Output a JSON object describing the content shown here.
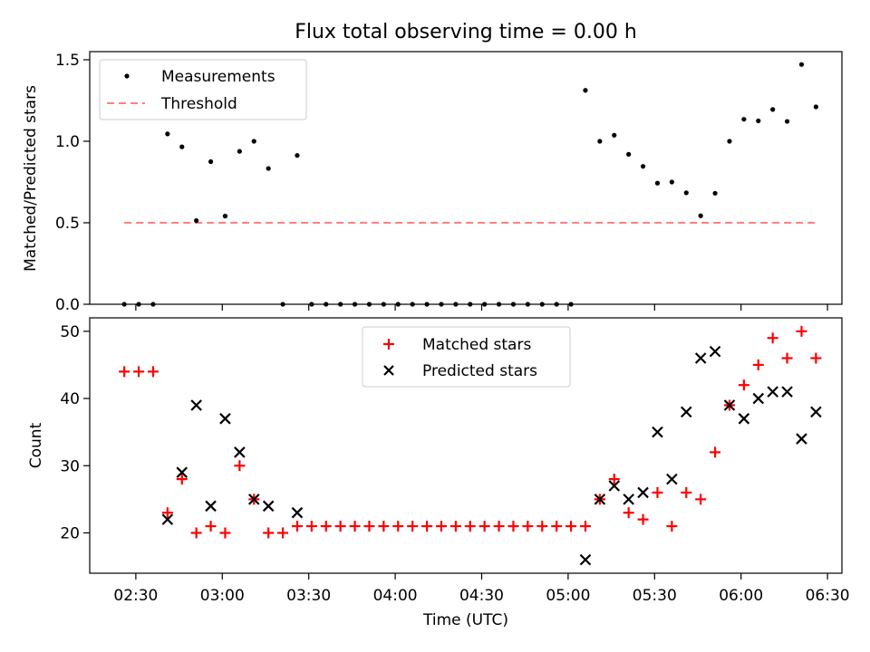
{
  "chart_data": [
    {
      "type": "scatter",
      "title": "Flux total observing time = 0.00 h",
      "xlabel": "",
      "ylabel": "Matched/Predicted stars",
      "ylim": [
        0,
        1.55
      ],
      "yticks": [
        "0.0",
        "0.5",
        "1.0",
        "1.5"
      ],
      "legend_position": "upper-left",
      "series": [
        {
          "name": "Measurements",
          "marker": "dot",
          "color": "#000000",
          "points": [
            [
              "02:26",
              0
            ],
            [
              "02:31",
              0
            ],
            [
              "02:36",
              0
            ],
            [
              "02:41",
              1.045
            ],
            [
              "02:46",
              0.966
            ],
            [
              "02:51",
              0.513
            ],
            [
              "02:56",
              0.875
            ],
            [
              "03:01",
              0.541
            ],
            [
              "03:06",
              0.938
            ],
            [
              "03:11",
              1.0
            ],
            [
              "03:16",
              0.833
            ],
            [
              "03:21",
              0
            ],
            [
              "03:26",
              0.913
            ],
            [
              "03:31",
              0
            ],
            [
              "03:36",
              0
            ],
            [
              "03:41",
              0
            ],
            [
              "03:46",
              0
            ],
            [
              "03:51",
              0
            ],
            [
              "03:56",
              0
            ],
            [
              "04:01",
              0
            ],
            [
              "04:06",
              0
            ],
            [
              "04:11",
              0
            ],
            [
              "04:16",
              0
            ],
            [
              "04:21",
              0
            ],
            [
              "04:26",
              0
            ],
            [
              "04:31",
              0
            ],
            [
              "04:36",
              0
            ],
            [
              "04:41",
              0
            ],
            [
              "04:46",
              0
            ],
            [
              "04:51",
              0
            ],
            [
              "04:56",
              0
            ],
            [
              "05:01",
              0
            ],
            [
              "05:06",
              1.3125
            ],
            [
              "05:11",
              1.0
            ],
            [
              "05:16",
              1.037
            ],
            [
              "05:21",
              0.92
            ],
            [
              "05:26",
              0.846
            ],
            [
              "05:31",
              0.743
            ],
            [
              "05:36",
              0.75
            ],
            [
              "05:41",
              0.684
            ],
            [
              "05:46",
              0.543
            ],
            [
              "05:51",
              0.681
            ],
            [
              "05:56",
              1.0
            ],
            [
              "06:01",
              1.135
            ],
            [
              "06:06",
              1.125
            ],
            [
              "06:11",
              1.195
            ],
            [
              "06:16",
              1.122
            ],
            [
              "06:21",
              1.471
            ],
            [
              "06:26",
              1.211
            ]
          ]
        },
        {
          "name": "Threshold",
          "style": "dashed",
          "color": "#ff7f7f",
          "points": [
            [
              "02:26",
              0.5
            ],
            [
              "06:26",
              0.5
            ]
          ]
        }
      ]
    },
    {
      "type": "scatter",
      "xlabel": "Time (UTC)",
      "ylabel": "Count",
      "ylim": [
        14,
        52
      ],
      "yticks": [
        "20",
        "30",
        "40",
        "50"
      ],
      "xticks": [
        "02:30",
        "03:00",
        "03:30",
        "04:00",
        "04:30",
        "05:00",
        "05:30",
        "06:00",
        "06:30"
      ],
      "legend_position": "upper-center",
      "series": [
        {
          "name": "Matched stars",
          "marker": "plus",
          "color": "#ff0000",
          "points": [
            [
              "02:26",
              44
            ],
            [
              "02:31",
              44
            ],
            [
              "02:36",
              44
            ],
            [
              "02:41",
              23
            ],
            [
              "02:46",
              28
            ],
            [
              "02:51",
              20
            ],
            [
              "02:56",
              21
            ],
            [
              "03:01",
              20
            ],
            [
              "03:06",
              30
            ],
            [
              "03:11",
              25
            ],
            [
              "03:16",
              20
            ],
            [
              "03:21",
              20
            ],
            [
              "03:26",
              21
            ],
            [
              "03:31",
              21
            ],
            [
              "03:36",
              21
            ],
            [
              "03:41",
              21
            ],
            [
              "03:46",
              21
            ],
            [
              "03:51",
              21
            ],
            [
              "03:56",
              21
            ],
            [
              "04:01",
              21
            ],
            [
              "04:06",
              21
            ],
            [
              "04:11",
              21
            ],
            [
              "04:16",
              21
            ],
            [
              "04:21",
              21
            ],
            [
              "04:26",
              21
            ],
            [
              "04:31",
              21
            ],
            [
              "04:36",
              21
            ],
            [
              "04:41",
              21
            ],
            [
              "04:46",
              21
            ],
            [
              "04:51",
              21
            ],
            [
              "04:56",
              21
            ],
            [
              "05:01",
              21
            ],
            [
              "05:06",
              21
            ],
            [
              "05:11",
              25
            ],
            [
              "05:16",
              28
            ],
            [
              "05:21",
              23
            ],
            [
              "05:26",
              22
            ],
            [
              "05:31",
              26
            ],
            [
              "05:36",
              21
            ],
            [
              "05:41",
              26
            ],
            [
              "05:46",
              25
            ],
            [
              "05:51",
              32
            ],
            [
              "05:56",
              39
            ],
            [
              "06:01",
              42
            ],
            [
              "06:06",
              45
            ],
            [
              "06:11",
              49
            ],
            [
              "06:16",
              46
            ],
            [
              "06:21",
              50
            ],
            [
              "06:26",
              46
            ]
          ]
        },
        {
          "name": "Predicted stars",
          "marker": "x",
          "color": "#000000",
          "points": [
            [
              "02:41",
              22
            ],
            [
              "02:46",
              29
            ],
            [
              "02:51",
              39
            ],
            [
              "02:56",
              24
            ],
            [
              "03:01",
              37
            ],
            [
              "03:06",
              32
            ],
            [
              "03:11",
              25
            ],
            [
              "03:16",
              24
            ],
            [
              "03:26",
              23
            ],
            [
              "05:06",
              16
            ],
            [
              "05:11",
              25
            ],
            [
              "05:16",
              27
            ],
            [
              "05:21",
              25
            ],
            [
              "05:26",
              26
            ],
            [
              "05:31",
              35
            ],
            [
              "05:36",
              28
            ],
            [
              "05:41",
              38
            ],
            [
              "05:46",
              46
            ],
            [
              "05:51",
              47
            ],
            [
              "05:56",
              39
            ],
            [
              "06:01",
              37
            ],
            [
              "06:06",
              40
            ],
            [
              "06:11",
              41
            ],
            [
              "06:16",
              41
            ],
            [
              "06:21",
              34
            ],
            [
              "06:26",
              38
            ]
          ]
        }
      ]
    }
  ]
}
